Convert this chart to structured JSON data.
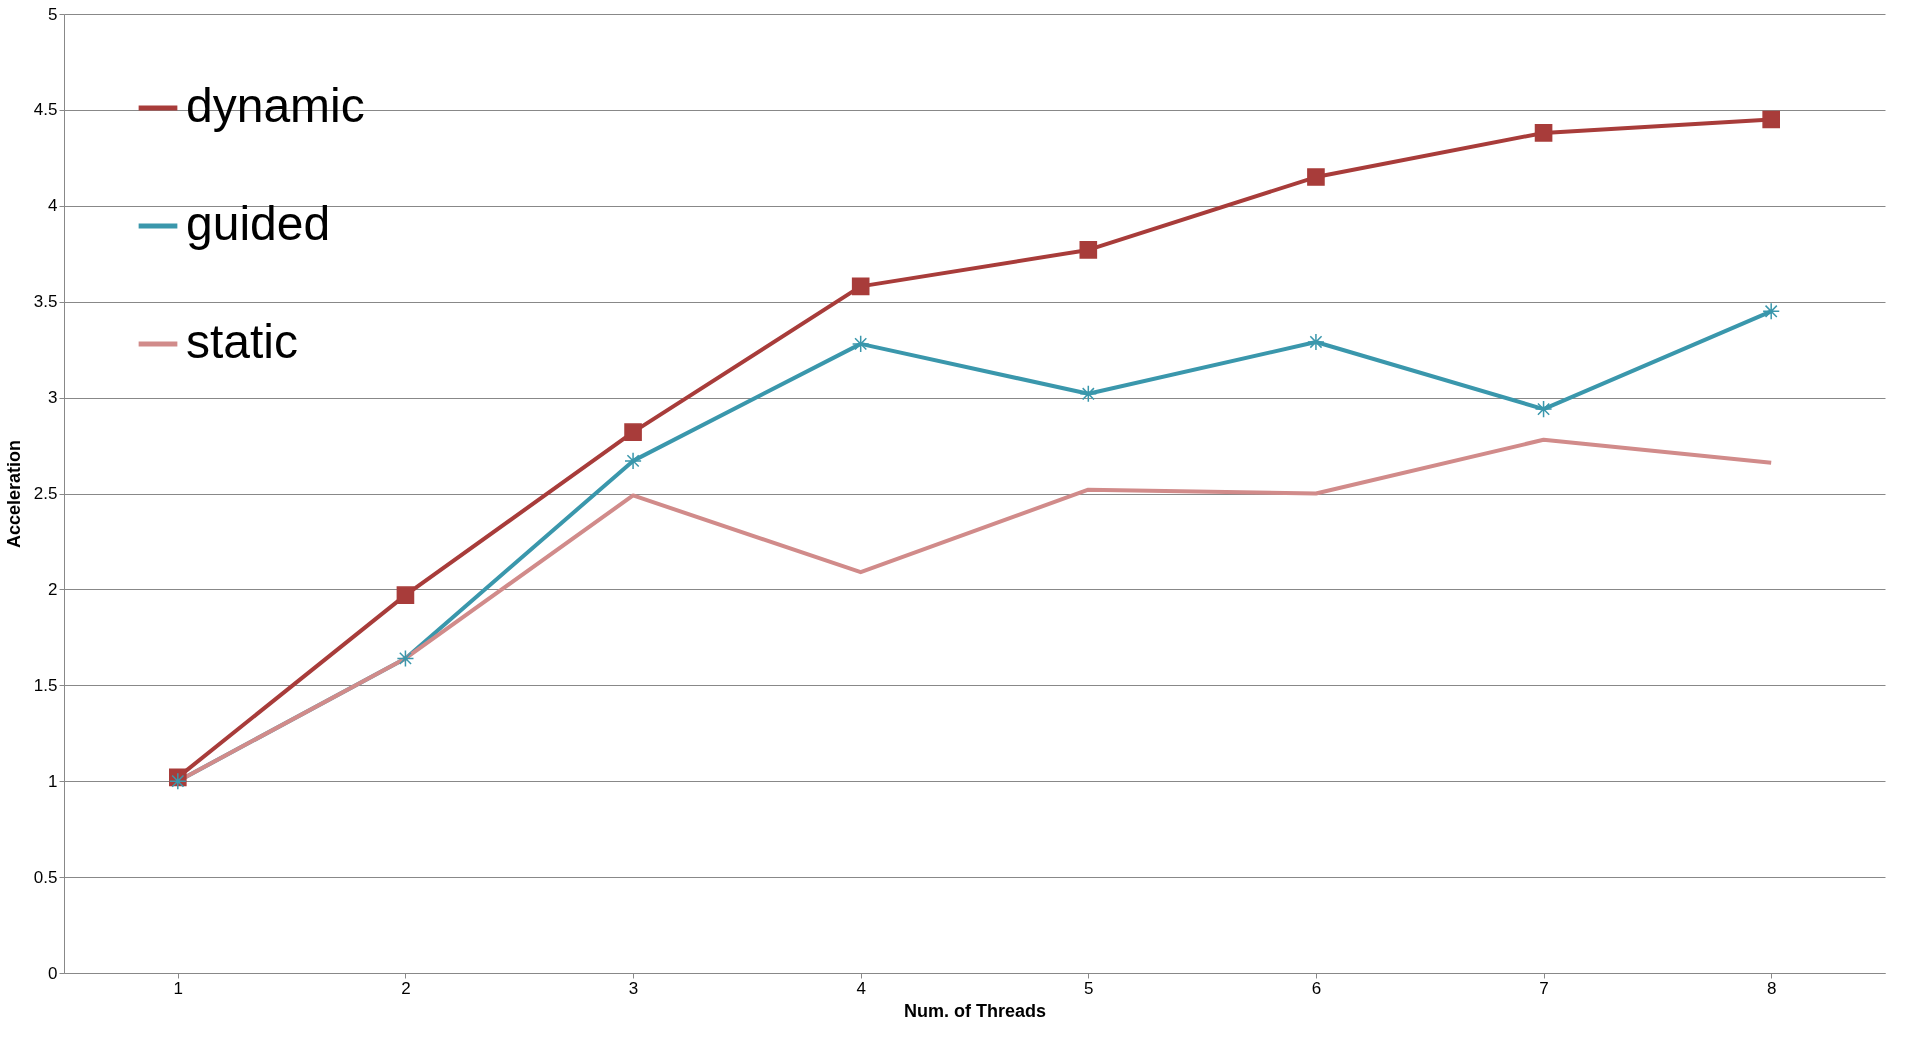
{
  "chart_data": {
    "type": "line",
    "xlabel": "Num. of Threads",
    "ylabel": "Acceleration",
    "categories": [
      "1",
      "2",
      "3",
      "4",
      "5",
      "6",
      "7",
      "8"
    ],
    "series": [
      {
        "name": "dynamic",
        "color": "#a83c3a",
        "marker": "square",
        "values": [
          1.02,
          1.97,
          2.82,
          3.58,
          3.77,
          4.15,
          4.38,
          4.45
        ]
      },
      {
        "name": "guided",
        "color": "#3a97ac",
        "marker": "cross",
        "values": [
          1.0,
          1.64,
          2.67,
          3.28,
          3.02,
          3.29,
          2.94,
          3.45
        ]
      },
      {
        "name": "static",
        "color": "#d18b8a",
        "marker": "none",
        "values": [
          1.0,
          1.64,
          2.49,
          2.09,
          2.52,
          2.5,
          2.78,
          2.66
        ]
      }
    ],
    "ylim": [
      0,
      5
    ],
    "yticks": [
      0,
      0.5,
      1,
      1.5,
      2,
      2.5,
      3,
      3.5,
      4,
      4.5,
      5
    ],
    "grid": "y",
    "legend": "top left"
  }
}
